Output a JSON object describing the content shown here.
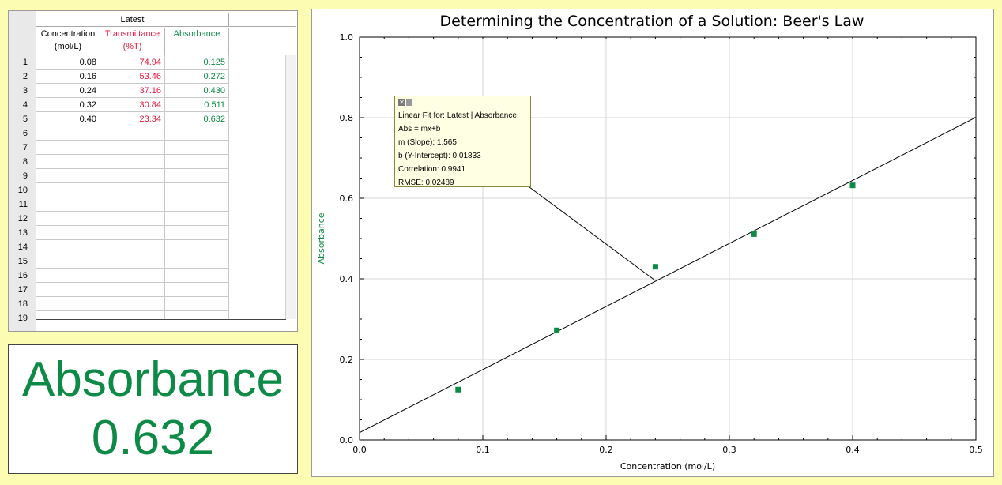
{
  "table": {
    "group_header": "Latest",
    "columns": [
      {
        "line1": "Concentration",
        "line2": "(mol/L)",
        "color": "#000000"
      },
      {
        "line1": "Transmittance",
        "line2": "(%T)",
        "color": "#e8173d"
      },
      {
        "line1": "Absorbance",
        "line2": "",
        "color": "#0d8a45"
      }
    ],
    "row_numbers": [
      "1",
      "2",
      "3",
      "4",
      "5",
      "6",
      "7",
      "8",
      "9",
      "10",
      "11",
      "12",
      "13",
      "14",
      "15",
      "16",
      "17",
      "18",
      "19"
    ],
    "rows": [
      [
        "0.08",
        "74.94",
        "0.125"
      ],
      [
        "0.16",
        "53.46",
        "0.272"
      ],
      [
        "0.24",
        "37.16",
        "0.430"
      ],
      [
        "0.32",
        "30.84",
        "0.511"
      ],
      [
        "0.40",
        "23.34",
        "0.632"
      ]
    ]
  },
  "meter": {
    "label": "Absorbance",
    "value": "0.632",
    "color": "#0d8a45"
  },
  "annotation": {
    "title": "Linear Fit for: Latest | Absorbance",
    "equation": "Abs = mx+b",
    "slope": "m (Slope): 1.565",
    "intercept": "b (Y-Intercept): 0.01833",
    "correlation": "Correlation: 0.9941",
    "rmse": "RMSE: 0.02489"
  },
  "chart_data": {
    "type": "scatter",
    "title": "Determining the Concentration of a Solution: Beer's Law",
    "xlabel": "Concentration (mol/L)",
    "ylabel": "Absorbance",
    "xlim": [
      0.0,
      0.5
    ],
    "ylim": [
      0.0,
      1.0
    ],
    "x_ticks": [
      "0.0",
      "0.1",
      "0.2",
      "0.3",
      "0.4",
      "0.5"
    ],
    "y_ticks": [
      "0.0",
      "0.2",
      "0.4",
      "0.6",
      "0.8",
      "1.0"
    ],
    "grid": true,
    "series": [
      {
        "x": [
          0.08,
          0.16,
          0.24,
          0.32,
          0.4
        ],
        "y": [
          0.125,
          0.272,
          0.43,
          0.511,
          0.632
        ],
        "color": "#0d8a45"
      }
    ],
    "fit": {
      "slope": 1.565,
      "intercept": 0.01833,
      "color": "#000000"
    }
  }
}
